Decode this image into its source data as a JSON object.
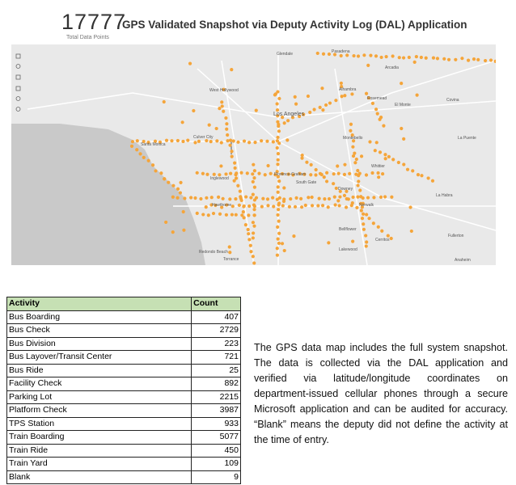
{
  "header": {
    "total": "17777",
    "title": "GPS Validated Snapshot via Deputy Activity Log (DAL) Application",
    "subtitle": "Total Data Points"
  },
  "map": {
    "places": [
      "Glendale",
      "Pasadena",
      "Los Angeles",
      "Alhambra",
      "Rosemead",
      "El Monte",
      "West Hollywood",
      "Culver City",
      "Santa Monica",
      "Inglewood",
      "Hawthorne",
      "Florence-Graham",
      "South Gate",
      "Downey",
      "Whittier",
      "La Habra",
      "Fullerton",
      "Anaheim",
      "Cerritos",
      "Lakewood",
      "Bellflower",
      "Torrance",
      "Redondo Beach",
      "Covina",
      "Arcadia",
      "Montebello",
      "La Puente",
      "Norwalk"
    ]
  },
  "table": {
    "header": [
      "Activity",
      "Count"
    ],
    "rows": [
      [
        "Bus Boarding",
        407
      ],
      [
        "Bus Check",
        2729
      ],
      [
        "Bus Division",
        223
      ],
      [
        "Bus Layover/Transit Center",
        721
      ],
      [
        "Bus Ride",
        25
      ],
      [
        "Facility Check",
        892
      ],
      [
        "Parking Lot",
        2215
      ],
      [
        "Platform Check",
        3987
      ],
      [
        "TPS Station",
        933
      ],
      [
        "Train Boarding",
        5077
      ],
      [
        "Train Ride",
        450
      ],
      [
        "Train Yard",
        109
      ],
      [
        "Blank",
        9
      ]
    ]
  },
  "paragraph": "The GPS data map includes the full system snapshot. The data is collected via the DAL application and verified via latitude/longitude coordinates on department-issued cellular phones through a secure Microsoft application and can be audited for accuracy. “Blank” means the deputy did not define the activity at the time of entry."
}
